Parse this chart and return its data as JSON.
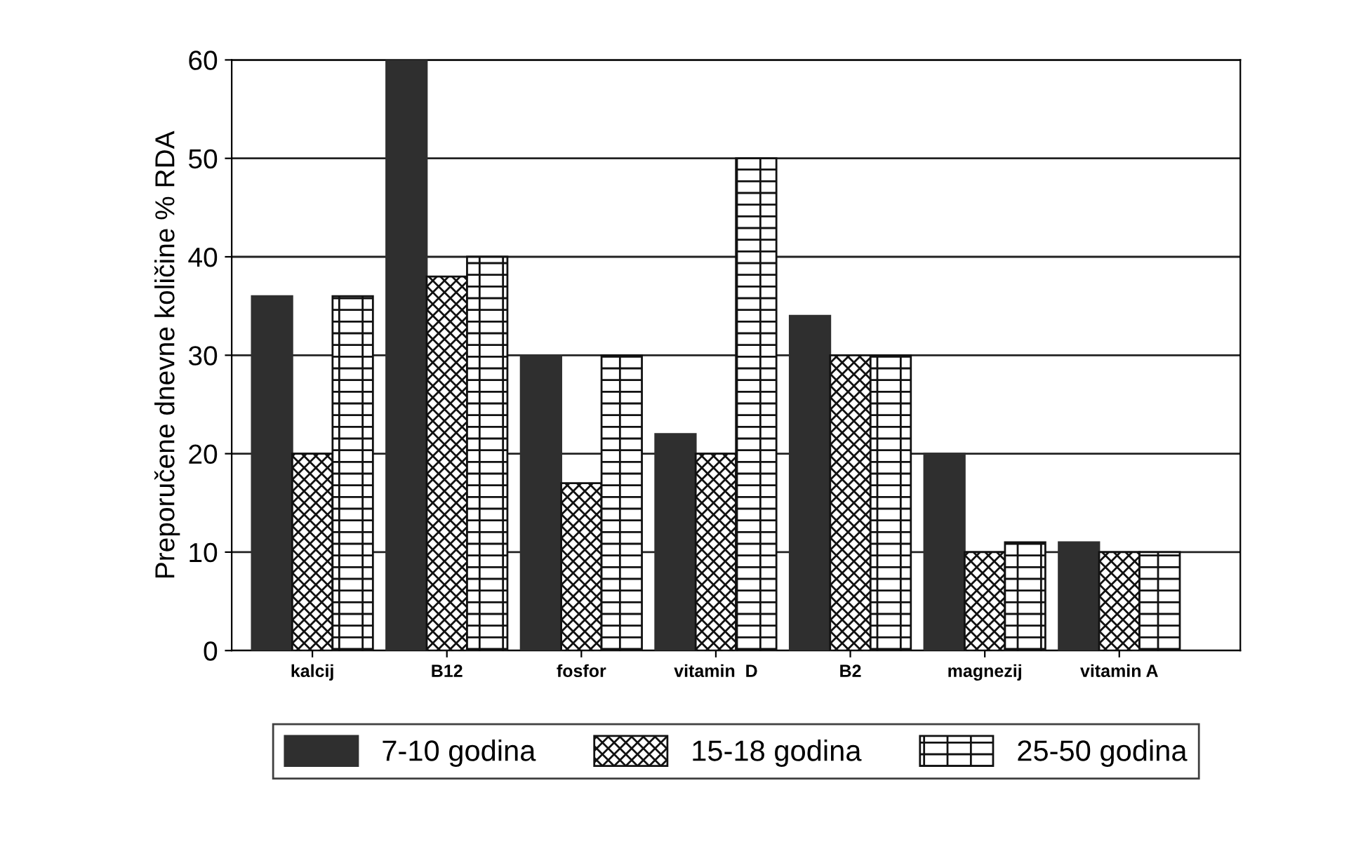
{
  "chart_data": {
    "type": "bar",
    "ylabel": "Preporučene dnevne količine % RDA",
    "categories": [
      "kalcij",
      "B12",
      "fosfor",
      "vitamin  D",
      "B2",
      "magnezij",
      "vitamin A"
    ],
    "series": [
      {
        "name": "7-10 godina",
        "color": "#2f2f2f",
        "values": [
          36,
          60,
          30,
          22,
          34,
          20,
          11
        ]
      },
      {
        "name": "15-18 godina",
        "color": "#111111",
        "values": [
          20,
          38,
          17,
          20,
          30,
          10,
          10
        ]
      },
      {
        "name": "25-50 godina",
        "color": "#111111",
        "values": [
          36,
          40,
          30,
          50,
          30,
          11,
          10
        ]
      }
    ],
    "ylim": [
      0,
      60
    ],
    "yticks": [
      0,
      10,
      20,
      30,
      40,
      50,
      60
    ],
    "grid": "y",
    "legend": "bottom"
  }
}
